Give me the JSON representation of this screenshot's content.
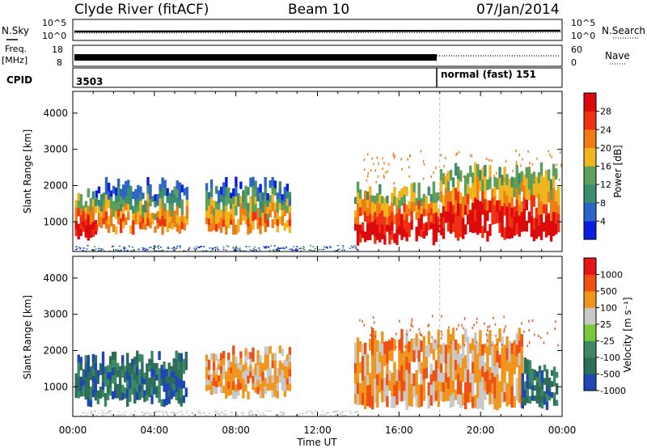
{
  "header": {
    "station": "Clyde River (fitACF)",
    "beam": "Beam 10",
    "date": "07/Jan/2014"
  },
  "panels": {
    "nsky": {
      "left_label": "N.Sky",
      "right_label": "N.Search",
      "left_ticks": [
        "10^5",
        "10^0"
      ],
      "right_ticks": [
        "10^5",
        "10^0"
      ]
    },
    "freq": {
      "left_label": "Freq.",
      "unit_label": "[MHz]",
      "right_label": "Nave",
      "left_ticks": [
        "18",
        "8"
      ],
      "right_ticks": [
        "60",
        "0"
      ]
    },
    "cpid": {
      "label": "CPID",
      "seg1": "3503",
      "seg2": "normal (fast) 151"
    }
  },
  "colors": {
    "power": [
      "#0a1ee0",
      "#2d64c8",
      "#3c8c6e",
      "#5aa05a",
      "#f0b41e",
      "#f07d14",
      "#f03214",
      "#dc0a0a"
    ],
    "velocity": [
      "#1e46b4",
      "#2d6e5a",
      "#3c8a64",
      "#78c83c",
      "#c8c8c8",
      "#f0961e",
      "#f05014",
      "#e61414"
    ]
  },
  "chart_data": [
    {
      "type": "heatmap",
      "name": "power",
      "ylabel": "Slant Range [km]",
      "colorbar_label": "Power [dB]",
      "colorbar_ticks": [
        "28",
        "24",
        "20",
        "16",
        "12",
        "8",
        "4"
      ],
      "yticks": [
        "4000",
        "3000",
        "2000",
        "1000"
      ],
      "ylim": [
        180,
        4600
      ],
      "xlim": [
        0,
        24
      ],
      "regions": [
        {
          "x0": 0.1,
          "x1": 1.1,
          "y0": 600,
          "y1": 1800,
          "lvl": 7
        },
        {
          "x0": 1.1,
          "x1": 5.6,
          "y0": 800,
          "y1": 2000,
          "lvl": 5
        },
        {
          "x0": 6.5,
          "x1": 10.6,
          "y0": 800,
          "y1": 2000,
          "lvl": 5
        },
        {
          "x0": 13.8,
          "x1": 18.0,
          "y0": 500,
          "y1": 1900,
          "lvl": 7
        },
        {
          "x0": 18.0,
          "x1": 23.8,
          "y0": 600,
          "y1": 2400,
          "lvl": 7
        }
      ]
    },
    {
      "type": "heatmap",
      "name": "velocity",
      "ylabel": "Slant Range [km]",
      "colorbar_label": "Velocity [m s⁻¹]",
      "colorbar_ticks": [
        "1000",
        "500",
        "100",
        "25",
        "-25",
        "-100",
        "-500",
        "-1000"
      ],
      "yticks": [
        "4000",
        "3000",
        "2000",
        "1000"
      ],
      "ylim": [
        180,
        4600
      ],
      "xlim": [
        0,
        24
      ],
      "xticks": [
        "00:00",
        "04:00",
        "08:00",
        "12:00",
        "16:00",
        "20:00",
        "00:00"
      ],
      "xlabel": "Time UT",
      "regions": [
        {
          "x0": 0.1,
          "x1": 5.6,
          "y0": 600,
          "y1": 1800,
          "lvl": 1
        },
        {
          "x0": 6.5,
          "x1": 10.6,
          "y0": 800,
          "y1": 1900,
          "lvl": 5
        },
        {
          "x0": 13.8,
          "x1": 22.0,
          "y0": 500,
          "y1": 2400,
          "lvl": 5
        },
        {
          "x0": 22.0,
          "x1": 23.8,
          "y0": 500,
          "y1": 1600,
          "lvl": 1
        }
      ]
    }
  ]
}
